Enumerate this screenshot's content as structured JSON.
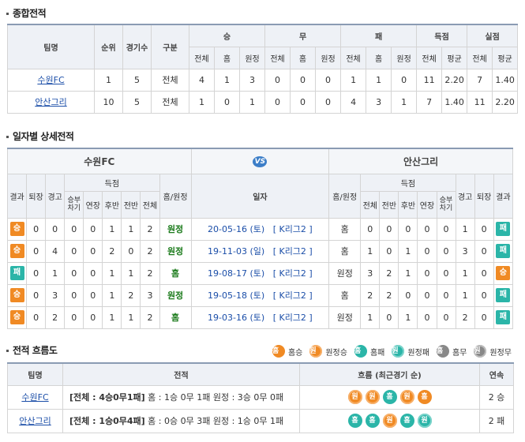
{
  "sections": {
    "overall": "종합전적",
    "daily": "일자별 상세전적",
    "flow": "전적 흐름도"
  },
  "overall": {
    "headers": {
      "team": "팀명",
      "rank": "순위",
      "games": "경기수",
      "div": "구분",
      "win": "승",
      "draw": "무",
      "loss": "패",
      "scored": "득점",
      "conceded": "실점",
      "total": "전체",
      "home": "홈",
      "away": "원정",
      "avg": "평균"
    },
    "rows": [
      {
        "team": "수원FC",
        "rank": "1",
        "games": "5",
        "div": "전체",
        "w": [
          "4",
          "1",
          "3"
        ],
        "d": [
          "0",
          "0",
          "0"
        ],
        "l": [
          "1",
          "1",
          "0"
        ],
        "s": [
          "11",
          "2.20"
        ],
        "c": [
          "7",
          "1.40"
        ]
      },
      {
        "team": "안산그리",
        "rank": "10",
        "games": "5",
        "div": "전체",
        "w": [
          "1",
          "0",
          "1"
        ],
        "d": [
          "0",
          "0",
          "0"
        ],
        "l": [
          "4",
          "3",
          "1"
        ],
        "s": [
          "7",
          "1.40"
        ],
        "c": [
          "11",
          "2.20"
        ]
      }
    ]
  },
  "daily": {
    "team_left": "수원FC",
    "team_right": "안산그리",
    "vs": "VS",
    "headers": {
      "result": "결과",
      "sendoff": "퇴장",
      "warn": "경고",
      "score": "득점",
      "pk": "승부차기",
      "ext": "연장",
      "h2": "후반",
      "h1": "전반",
      "total": "전체",
      "ha": "홈/원정",
      "date": "일자"
    },
    "rows": [
      {
        "lr": "승",
        "lres": "win",
        "l": [
          "0",
          "0",
          "0",
          "0",
          "1",
          "1",
          "2"
        ],
        "lha": "원정",
        "date": "20-05-16 (토)",
        "league": "[ K리그2 ]",
        "rha": "홈",
        "r": [
          "0",
          "0",
          "0",
          "0",
          "0",
          "1",
          "0"
        ],
        "rr": "패",
        "rres": "lose"
      },
      {
        "lr": "승",
        "lres": "win",
        "l": [
          "0",
          "4",
          "0",
          "0",
          "2",
          "0",
          "2"
        ],
        "lha": "원정",
        "date": "19-11-03 (일)",
        "league": "[ K리그2 ]",
        "rha": "홈",
        "r": [
          "1",
          "0",
          "1",
          "0",
          "0",
          "3",
          "0"
        ],
        "rr": "패",
        "rres": "lose"
      },
      {
        "lr": "패",
        "lres": "lose",
        "l": [
          "0",
          "1",
          "0",
          "0",
          "1",
          "1",
          "2"
        ],
        "lha": "홈",
        "date": "19-08-17 (토)",
        "league": "[ K리그2 ]",
        "rha": "원정",
        "r": [
          "3",
          "2",
          "1",
          "0",
          "0",
          "1",
          "0"
        ],
        "rr": "승",
        "rres": "win"
      },
      {
        "lr": "승",
        "lres": "win",
        "l": [
          "0",
          "3",
          "0",
          "0",
          "1",
          "2",
          "3"
        ],
        "lha": "원정",
        "date": "19-05-18 (토)",
        "league": "[ K리그2 ]",
        "rha": "홈",
        "r": [
          "2",
          "2",
          "0",
          "0",
          "0",
          "1",
          "0"
        ],
        "rr": "패",
        "rres": "lose"
      },
      {
        "lr": "승",
        "lres": "win",
        "l": [
          "0",
          "2",
          "0",
          "0",
          "1",
          "1",
          "2"
        ],
        "lha": "홈",
        "date": "19-03-16 (토)",
        "league": "[ K리그2 ]",
        "rha": "원정",
        "r": [
          "1",
          "0",
          "1",
          "0",
          "0",
          "2",
          "0"
        ],
        "rr": "패",
        "rres": "lose"
      }
    ]
  },
  "legend": [
    {
      "glyph": "홈",
      "label": "홈승",
      "cls": "c-hw"
    },
    {
      "glyph": "원",
      "label": "원정승",
      "cls": "c-aw"
    },
    {
      "glyph": "홈",
      "label": "홈패",
      "cls": "c-hl"
    },
    {
      "glyph": "원",
      "label": "원정패",
      "cls": "c-al"
    },
    {
      "glyph": "홈",
      "label": "홈무",
      "cls": "c-hd"
    },
    {
      "glyph": "원",
      "label": "원정무",
      "cls": "c-ad"
    }
  ],
  "flow": {
    "headers": {
      "team": "팀명",
      "record": "전적",
      "flow": "흐름 (최근경기 순)",
      "streak": "연속"
    },
    "rows": [
      {
        "team": "수원FC",
        "record_bold": "[전체 : 4승0무1패]",
        "record_rest": " 홈 : 1승 0무 1패  원정 : 3승 0무 0패",
        "flow": [
          {
            "g": "원",
            "c": "c-aw"
          },
          {
            "g": "원",
            "c": "c-aw"
          },
          {
            "g": "홈",
            "c": "c-hl"
          },
          {
            "g": "원",
            "c": "c-aw"
          },
          {
            "g": "홈",
            "c": "c-hw"
          }
        ],
        "streak": "2 승"
      },
      {
        "team": "안산그리",
        "record_bold": "[전체 : 1승0무4패]",
        "record_rest": " 홈 : 0승 0무 3패  원정 : 1승 0무 1패",
        "flow": [
          {
            "g": "홈",
            "c": "c-hl"
          },
          {
            "g": "홈",
            "c": "c-hl"
          },
          {
            "g": "원",
            "c": "c-aw"
          },
          {
            "g": "홈",
            "c": "c-hl"
          },
          {
            "g": "원",
            "c": "c-al"
          }
        ],
        "streak": "2 패"
      }
    ]
  }
}
